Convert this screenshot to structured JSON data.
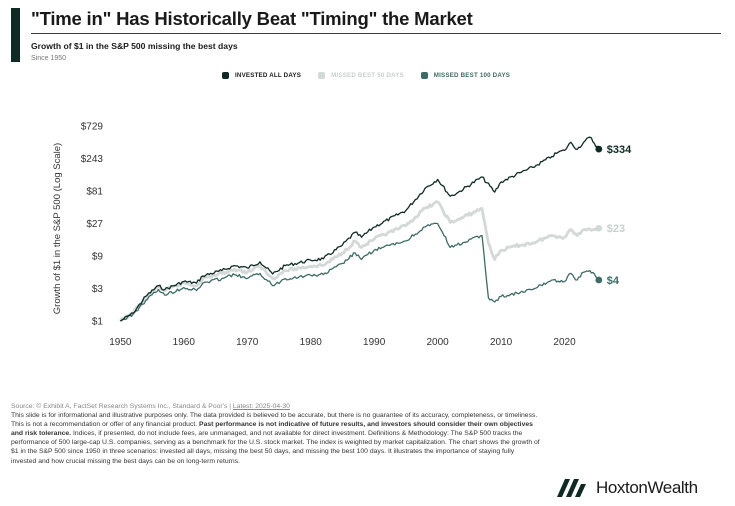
{
  "header": {
    "title": "\"Time in\" Has Historically Beat \"Timing\" the Market",
    "subtitle": "Growth of $1 in the S&P 500 missing the best days",
    "since": "Since 1950"
  },
  "colors": {
    "accent": "#0f2a25",
    "invested": "#0f2a25",
    "missed50": "#d3d9d7",
    "missed100": "#3e6b66"
  },
  "chart_data": {
    "type": "line",
    "title": "\"Time in\" Has Historically Beat \"Timing\" the Market",
    "ylabel": "Growth of $1 in the S&P 500 (Log Scale)",
    "xlabel": "",
    "y_scale": "log",
    "ylim": [
      1,
      729
    ],
    "xlim": [
      1949,
      2030
    ],
    "y_ticks": [
      {
        "value": 1,
        "label": "$1"
      },
      {
        "value": 3,
        "label": "$3"
      },
      {
        "value": 9,
        "label": "$9"
      },
      {
        "value": 27,
        "label": "$27"
      },
      {
        "value": 81,
        "label": "$81"
      },
      {
        "value": 243,
        "label": "$243"
      },
      {
        "value": 729,
        "label": "$729"
      }
    ],
    "x_ticks": [
      {
        "value": 1950,
        "label": "1950"
      },
      {
        "value": 1960,
        "label": "1960"
      },
      {
        "value": 1970,
        "label": "1970"
      },
      {
        "value": 1980,
        "label": "1980"
      },
      {
        "value": 1990,
        "label": "1990"
      },
      {
        "value": 2000,
        "label": "2000"
      },
      {
        "value": 2010,
        "label": "2010"
      },
      {
        "value": 2020,
        "label": "2020"
      }
    ],
    "grid": false,
    "legend_position": "top-center",
    "series": [
      {
        "name": "INVESTED ALL DAYS",
        "end_label": "$334",
        "x": [
          1950,
          1952,
          1954,
          1956,
          1957,
          1960,
          1962,
          1963,
          1966,
          1968,
          1970,
          1972,
          1974,
          1976,
          1980,
          1982,
          1985,
          1987,
          1988,
          1990,
          1995,
          1998,
          2000,
          2002,
          2003,
          2007,
          2009,
          2010,
          2013,
          2015,
          2018,
          2019,
          2020,
          2021,
          2022,
          2023,
          2024,
          2025.4
        ],
        "y": [
          1,
          1.3,
          2.3,
          3.3,
          2.9,
          3.8,
          3.6,
          4.6,
          5.5,
          6.5,
          6.0,
          7.4,
          4.9,
          6.5,
          7.8,
          8.2,
          13,
          20,
          17,
          24,
          42,
          88,
          120,
          68,
          75,
          130,
          78,
          110,
          150,
          180,
          260,
          300,
          320,
          420,
          330,
          420,
          500,
          334
        ]
      },
      {
        "name": "MISSED BEST 50 DAYS",
        "end_label": "$23",
        "x": [
          1950,
          1952,
          1954,
          1956,
          1957,
          1960,
          1962,
          1963,
          1966,
          1968,
          1970,
          1972,
          1974,
          1976,
          1980,
          1982,
          1985,
          1987,
          1988,
          1990,
          1995,
          1998,
          2000,
          2002,
          2003,
          2007,
          2008,
          2009,
          2010,
          2013,
          2015,
          2018,
          2020,
          2021,
          2022,
          2023,
          2025.4
        ],
        "y": [
          1,
          1.3,
          2.2,
          3.2,
          2.8,
          3.6,
          3.3,
          4.2,
          5.0,
          5.8,
          5.2,
          6.4,
          4.2,
          5.5,
          6.4,
          6.6,
          10,
          15,
          12,
          16,
          25,
          45,
          56,
          28,
          30,
          45,
          14,
          8,
          11,
          13,
          14,
          18,
          17,
          22,
          18,
          22,
          23
        ]
      },
      {
        "name": "MISSED BEST 100 DAYS",
        "end_label": "$4",
        "x": [
          1950,
          1952,
          1954,
          1956,
          1957,
          1960,
          1962,
          1963,
          1966,
          1968,
          1970,
          1972,
          1974,
          1976,
          1980,
          1982,
          1985,
          1987,
          1988,
          1990,
          1995,
          1998,
          2000,
          2002,
          2003,
          2007,
          2008,
          2009,
          2010,
          2013,
          2015,
          2018,
          2020,
          2021,
          2022,
          2023,
          2024,
          2025.4
        ],
        "y": [
          1,
          1.25,
          2.0,
          2.9,
          2.4,
          3.1,
          2.8,
          3.6,
          4.2,
          4.8,
          4.2,
          5.0,
          3.3,
          4.2,
          4.7,
          4.8,
          7,
          10,
          8,
          11,
          15,
          24,
          27,
          12,
          13,
          18,
          2.2,
          1.9,
          2.3,
          2.6,
          2.9,
          4.0,
          3.8,
          5.0,
          4.0,
          5.2,
          5.5,
          4
        ]
      }
    ]
  },
  "footer": {
    "source_prefix": "Source: © Exhibit A, FactSet Research Systems Inc., Standard & Poor's |",
    "source_latest": "Latest: 2025-04-30",
    "disclaimer_1": "This slide is for informational and illustrative purposes only. The data provided is believed to be accurate, but there is no guarantee of its accuracy, completeness, or timeliness. This is not a recommendation or offer of any financial product.",
    "disclaimer_bold": "Past performance is not indicative of future results, and investors should consider their own objectives and risk tolerance.",
    "disclaimer_2": "Indices, if presented, do not include fees, are unmanaged, and not available for direct investment. Definitions & Methodology: The S&P 500 tracks the performance of 500 large-cap U.S. companies, serving as a benchmark for the U.S. stock market. The index is weighted by market capitalization. The chart shows the growth of $1 in the S&P 500 since 1950 in three scenarios: invested all days, missing the best 50 days, and missing the best 100 days. It illustrates the importance of staying fully invested and how crucial missing the best days can be on long-term returns."
  },
  "brand": {
    "name": "HoxtonWealth",
    "logo_icon": "hw-logo-icon"
  }
}
